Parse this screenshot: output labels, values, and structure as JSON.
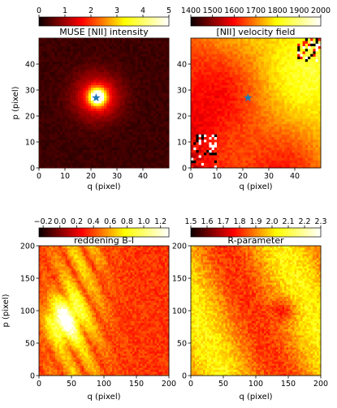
{
  "chart_data": [
    {
      "type": "heatmap",
      "title": "MUSE [NII] intensity",
      "xlabel": "q (pixel)",
      "ylabel": "p (pixel)",
      "xlim": [
        0,
        50
      ],
      "ylim": [
        0,
        50
      ],
      "xticks": [
        "0",
        "10",
        "20",
        "30",
        "40"
      ],
      "yticks": [
        "0",
        "10",
        "20",
        "30",
        "40"
      ],
      "colorbar": {
        "label": "",
        "range": [
          0,
          5
        ],
        "ticks": [
          "0",
          "1",
          "2",
          "3",
          "4",
          "5"
        ]
      },
      "marker": {
        "symbol": "star",
        "q": 22,
        "p": 27,
        "color": "#1f77b4"
      },
      "pattern": "centrally peaked emission at q≈22, p≈27 with peak ≈5, falling to ≈0.3 at edges"
    },
    {
      "type": "heatmap",
      "title": "[NII] velocity field",
      "xlabel": "q (pixel)",
      "ylabel": "",
      "xlim": [
        0,
        50
      ],
      "ylim": [
        0,
        50
      ],
      "xticks": [
        "0",
        "10",
        "20",
        "30",
        "40"
      ],
      "yticks": [
        "0",
        "10",
        "20",
        "30",
        "40"
      ],
      "colorbar": {
        "label": "",
        "range": [
          1400,
          2000
        ],
        "ticks": [
          "1400",
          "1500",
          "1600",
          "1700",
          "1800",
          "1900",
          "2000"
        ]
      },
      "marker": {
        "symbol": "star",
        "q": 22,
        "p": 27,
        "color": "#1f77b4"
      },
      "pattern": "velocity gradient from ≈1650 (lower-left, red) to ≈1900 (upper-right, yellow); noisy pixels at lower-left and upper-right corners"
    },
    {
      "type": "heatmap",
      "title": "reddening B-I",
      "xlabel": "q (pixel)",
      "ylabel": "p (pixel)",
      "xlim": [
        0,
        200
      ],
      "ylim": [
        0,
        200
      ],
      "xticks": [
        "0",
        "50",
        "100",
        "150",
        "200"
      ],
      "yticks": [
        "0",
        "50",
        "100",
        "150",
        "200"
      ],
      "colorbar": {
        "label": "",
        "range": [
          -0.25,
          1.3
        ],
        "ticks": [
          "−0.2",
          "0.0",
          "0.2",
          "0.4",
          "0.6",
          "0.8",
          "1.0",
          "1.2"
        ]
      },
      "pattern": "bright (≈1.0) filamentary region around q≈30, p≈80; mostly red (≈0.4) elsewhere"
    },
    {
      "type": "heatmap",
      "title": "R-parameter",
      "xlabel": "q (pixel)",
      "ylabel": "",
      "xlim": [
        0,
        200
      ],
      "ylim": [
        0,
        200
      ],
      "xticks": [
        "0",
        "50",
        "100",
        "150",
        "200"
      ],
      "yticks": [
        "0",
        "50",
        "100",
        "150",
        "200"
      ],
      "colorbar": {
        "label": "",
        "range": [
          1.5,
          2.3
        ],
        "ticks": [
          "1.5",
          "1.6",
          "1.7",
          "1.8",
          "1.9",
          "2.0",
          "2.1",
          "2.2",
          "2.3"
        ]
      },
      "pattern": "mostly orange/yellow (≈1.9–2.1) with darker patches (≈1.7) near q≈150, p≈100"
    }
  ]
}
